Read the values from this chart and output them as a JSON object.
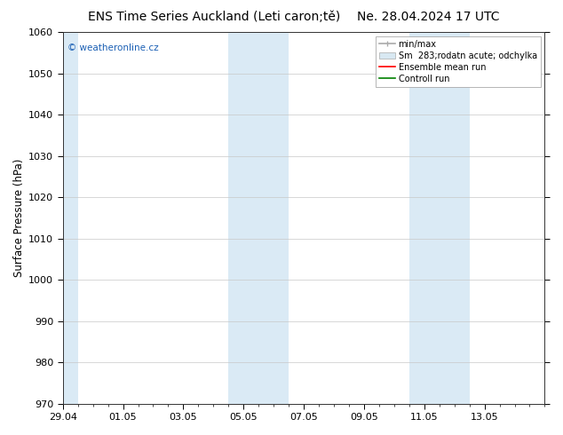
{
  "title_left": "ENS Time Series Auckland (Leti caron;tě)",
  "title_right": "Ne. 28.04.2024 17 UTC",
  "ylabel": "Surface Pressure (hPa)",
  "watermark": "© weatheronline.cz",
  "watermark_color": "#1a5fb4",
  "ylim": [
    970,
    1060
  ],
  "yticks": [
    970,
    980,
    990,
    1000,
    1010,
    1020,
    1030,
    1040,
    1050,
    1060
  ],
  "xlim": [
    0,
    16
  ],
  "xtick_labels": [
    "29.04",
    "01.05",
    "03.05",
    "05.05",
    "07.05",
    "09.05",
    "11.05",
    "13.05"
  ],
  "xtick_positions": [
    0,
    2,
    4,
    6,
    8,
    10,
    12,
    14
  ],
  "shaded_bands": [
    {
      "x_start": 0,
      "x_end": 0.5
    },
    {
      "x_start": 5.5,
      "x_end": 7.5
    },
    {
      "x_start": 11.5,
      "x_end": 13.5
    }
  ],
  "shade_color": "#daeaf5",
  "bg_color": "#ffffff",
  "grid_color": "#c8c8c8",
  "title_fontsize": 10,
  "tick_fontsize": 8,
  "label_fontsize": 8.5
}
